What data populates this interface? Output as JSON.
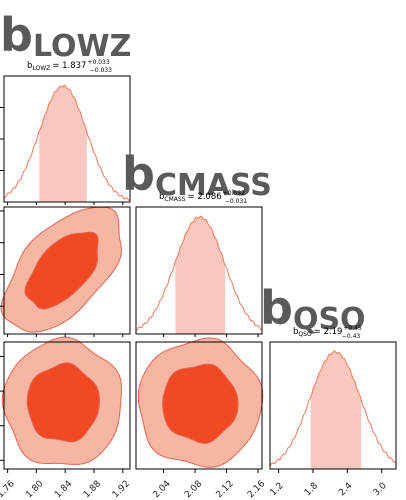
{
  "chart_data": {
    "type": "corner",
    "colors": {
      "hist_line": "#f07858",
      "band_fill": "#f8c8c0",
      "contour_inner": "#f04a25",
      "contour_outer": "#f7b5a3",
      "contour_edge": "#e36650"
    },
    "parameters": [
      {
        "key": "lowz",
        "label_main": "b",
        "label_sub": "LOWZ",
        "summary_name": "b",
        "summary_sub": "LOWZ",
        "summary_value": "= 1.837",
        "summary_plus": "+0.033",
        "summary_minus": "−0.033",
        "median": 1.837,
        "err_plus": 0.033,
        "err_minus": 0.033,
        "range": [
          1.755,
          1.93
        ],
        "ticks": [
          1.76,
          1.8,
          1.84,
          1.88,
          1.92
        ],
        "tick_labels": [
          "1.76",
          "1.80",
          "1.84",
          "1.88",
          "1.92"
        ]
      },
      {
        "key": "cmass",
        "label_main": "b",
        "label_sub": "CMASS",
        "summary_name": "b",
        "summary_sub": "CMASS",
        "summary_value": "= 2.086",
        "summary_plus": "+0.032",
        "summary_minus": "−0.031",
        "median": 2.086,
        "err_plus": 0.032,
        "err_minus": 0.031,
        "range": [
          2.005,
          2.165
        ],
        "ticks": [
          2.04,
          2.08,
          2.12,
          2.16
        ],
        "tick_labels": [
          "2.04",
          "2.08",
          "2.12",
          "2.16"
        ]
      },
      {
        "key": "qso",
        "label_main": "b",
        "label_sub": "QSO",
        "summary_name": "b",
        "summary_sub": "QSO",
        "summary_value": "= 2.19",
        "summary_plus": "+0.45",
        "summary_minus": "−0.43",
        "median": 2.19,
        "err_plus": 0.45,
        "err_minus": 0.43,
        "range": [
          1.05,
          3.25
        ],
        "ticks": [
          1.2,
          1.8,
          2.4,
          3.0
        ],
        "tick_labels": [
          "1.2",
          "1.8",
          "2.4",
          "3.0"
        ]
      }
    ],
    "correlations": [
      {
        "x": "lowz",
        "y": "cmass",
        "rho": 0.55
      },
      {
        "x": "lowz",
        "y": "qso",
        "rho": 0.0
      },
      {
        "x": "cmass",
        "y": "qso",
        "rho": 0.0
      }
    ],
    "contour_levels_sigma": [
      1,
      2
    ]
  }
}
